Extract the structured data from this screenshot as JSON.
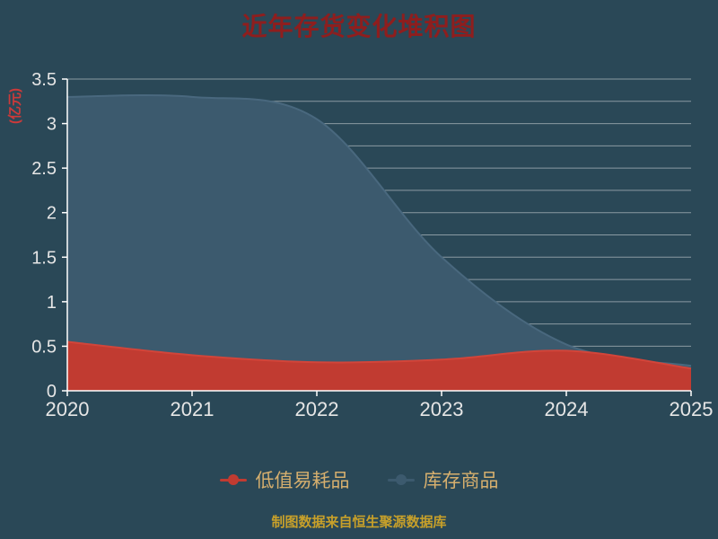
{
  "page": {
    "background": "#2a4857"
  },
  "chart_data": {
    "type": "area",
    "stacked": true,
    "smooth": true,
    "title": "近年存货变化堆积图",
    "y_unit": "(亿元)",
    "source_note": "制图数据来自恒生聚源数据库",
    "x": [
      "2020",
      "2021",
      "2022",
      "2023",
      "2024",
      "2025"
    ],
    "xlabel": "",
    "ylabel": "(亿元)",
    "ylim": [
      0,
      3.5
    ],
    "y_ticks": [
      0,
      0.5,
      1,
      1.5,
      2,
      2.5,
      3,
      3.5
    ],
    "grid_interval": 0.25,
    "grid": true,
    "legend_position": "bottom",
    "series": [
      {
        "name": "低值易耗品",
        "color": "#c13b31",
        "line_color": "#d2453a",
        "values": [
          0.55,
          0.4,
          0.32,
          0.35,
          0.45,
          0.25
        ]
      },
      {
        "name": "库存商品",
        "color": "#3c5a6e",
        "line_color": "#49687e",
        "values": [
          2.75,
          2.9,
          2.73,
          1.15,
          0.07,
          0.03
        ]
      }
    ],
    "totals": [
      3.3,
      3.3,
      3.05,
      1.5,
      0.52,
      0.28
    ],
    "colors": {
      "page_bg": "#2a4857",
      "title": "#8e1e1e",
      "y_unit_label": "#cc3a3a",
      "axis_line": "#ffffff",
      "tick_text": "#e6e6e6",
      "grid": "rgba(255,255,255,0.45)",
      "legend_text": "#d6af6e",
      "source_text": "#c7a02a"
    }
  }
}
